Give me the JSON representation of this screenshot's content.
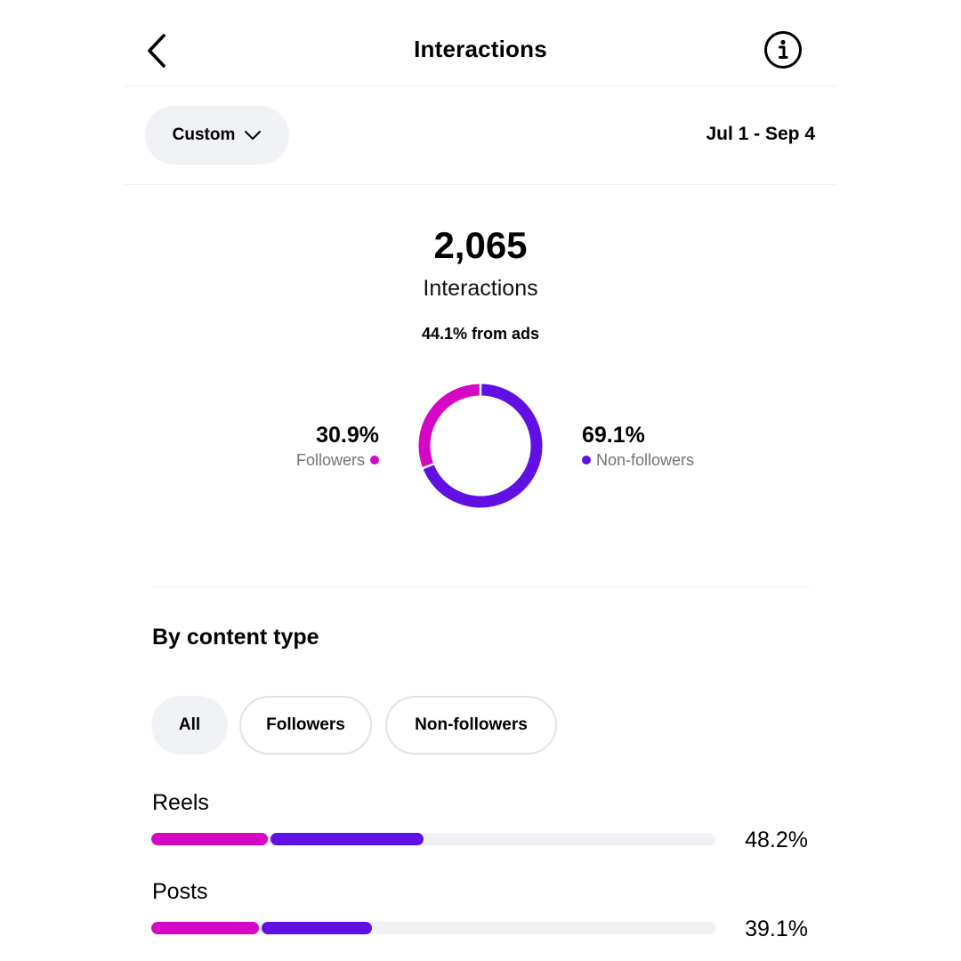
{
  "header": {
    "title": "Interactions"
  },
  "date_filter": {
    "selected": "Custom",
    "range": "Jul 1 - Sep 4"
  },
  "summary": {
    "total": "2,065",
    "label": "Interactions",
    "ads_note": "44.1% from ads"
  },
  "audience": {
    "followers": {
      "percent": "30.9%",
      "label": "Followers",
      "value": 30.9,
      "color": "#d307c4"
    },
    "non_followers": {
      "percent": "69.1%",
      "label": "Non-followers",
      "value": 69.1,
      "color": "#6010e3"
    }
  },
  "content_type": {
    "title": "By content type",
    "filters": [
      {
        "label": "All",
        "active": true
      },
      {
        "label": "Followers",
        "active": false
      },
      {
        "label": "Non-followers",
        "active": false
      }
    ],
    "rows": [
      {
        "label": "Reels",
        "percent": "48.2%",
        "total": 48.2,
        "followers_share": 43
      },
      {
        "label": "Posts",
        "percent": "39.1%",
        "total": 39.1,
        "followers_share": 49
      }
    ]
  },
  "colors": {
    "followers": "#d307c4",
    "non_followers": "#6010e3",
    "track": "#f0f1f4"
  },
  "icons": {
    "back": "chevron-left-icon",
    "info": "info-circle-icon",
    "dropdown": "chevron-down-icon"
  }
}
